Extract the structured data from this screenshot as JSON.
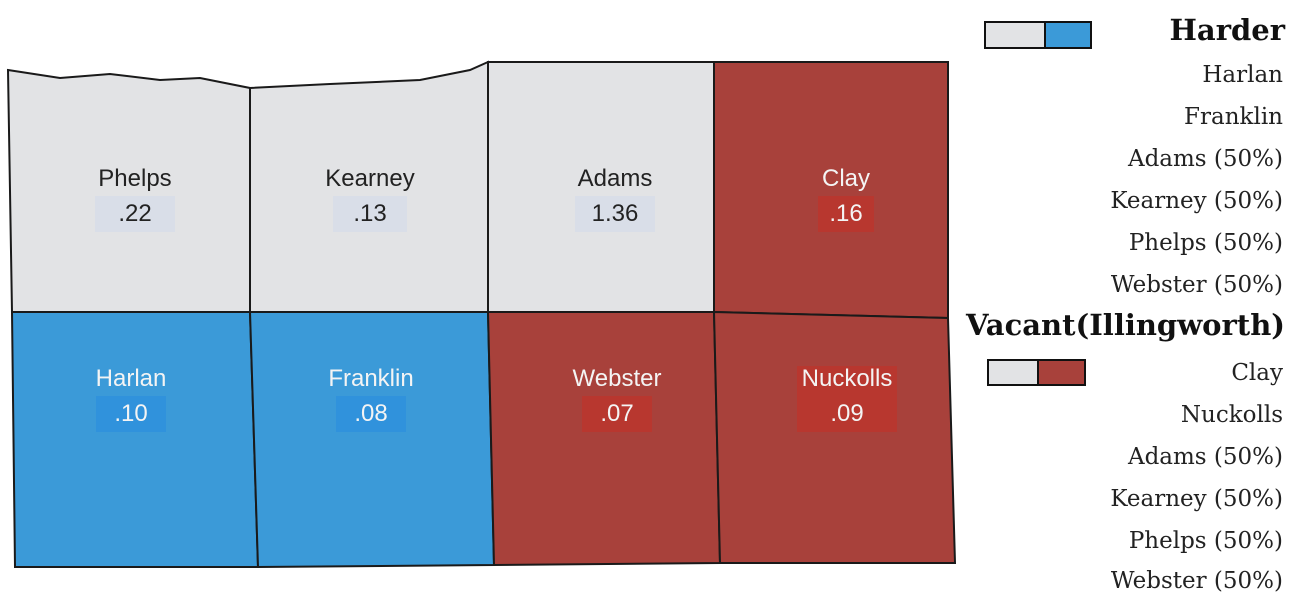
{
  "counties": [
    {
      "name": "Phelps",
      "value": ".22"
    },
    {
      "name": "Kearney",
      "value": ".13"
    },
    {
      "name": "Adams",
      "value": "1.36"
    },
    {
      "name": "Clay",
      "value": ".16"
    },
    {
      "name": "Harlan",
      "value": ".10"
    },
    {
      "name": "Franklin",
      "value": ".08"
    },
    {
      "name": "Webster",
      "value": ".07"
    },
    {
      "name": "Nuckolls",
      "value": ".09"
    }
  ],
  "legend": [
    {
      "title": "Harder",
      "items": [
        "Harlan",
        "Franklin",
        "Adams (50%)",
        "Kearney (50%)",
        "Phelps (50%)",
        "Webster (50%)"
      ]
    },
    {
      "title": "Vacant(Illingworth)",
      "items": [
        "Clay",
        "Nuckolls",
        "Adams (50%)",
        "Kearney (50%)",
        "Phelps (50%)",
        "Webster (50%)"
      ]
    }
  ]
}
